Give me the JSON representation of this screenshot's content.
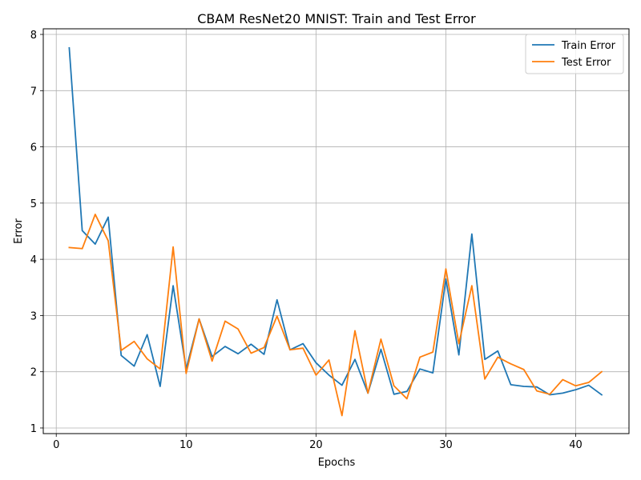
{
  "chart_data": {
    "type": "line",
    "title": "CBAM ResNet20 MNIST: Train and Test Error",
    "xlabel": "Epochs",
    "ylabel": "Error",
    "xlim": [
      -1,
      44.1
    ],
    "ylim": [
      0.9,
      8.1
    ],
    "xticks": [
      0,
      10,
      20,
      30,
      40
    ],
    "yticks": [
      1,
      2,
      3,
      4,
      5,
      6,
      7,
      8
    ],
    "grid": true,
    "legend_position": "top-right",
    "x": [
      1,
      2,
      3,
      4,
      5,
      6,
      7,
      8,
      9,
      10,
      11,
      12,
      13,
      14,
      15,
      16,
      17,
      18,
      19,
      20,
      21,
      22,
      23,
      24,
      25,
      26,
      27,
      28,
      29,
      30,
      31,
      32,
      33,
      34,
      35,
      36,
      37,
      38,
      39,
      40,
      41,
      42
    ],
    "series": [
      {
        "name": "Train Error",
        "color": "#1f77b4",
        "values": [
          7.76,
          4.51,
          4.27,
          4.75,
          2.29,
          2.1,
          2.66,
          1.74,
          3.53,
          2.05,
          2.94,
          2.27,
          2.45,
          2.32,
          2.49,
          2.31,
          3.28,
          2.39,
          2.5,
          2.16,
          1.94,
          1.76,
          2.22,
          1.62,
          2.4,
          1.6,
          1.65,
          2.05,
          1.98,
          3.65,
          2.3,
          4.45,
          2.22,
          2.37,
          1.77,
          1.74,
          1.73,
          1.59,
          1.62,
          1.68,
          1.76,
          1.59
        ]
      },
      {
        "name": "Test Error",
        "color": "#ff7f0e",
        "values": [
          4.21,
          4.19,
          4.8,
          4.33,
          2.38,
          2.54,
          2.23,
          2.05,
          4.22,
          1.97,
          2.94,
          2.19,
          2.9,
          2.76,
          2.33,
          2.43,
          2.99,
          2.39,
          2.42,
          1.94,
          2.21,
          1.22,
          2.73,
          1.62,
          2.58,
          1.75,
          1.52,
          2.26,
          2.35,
          3.83,
          2.5,
          3.53,
          1.87,
          2.26,
          2.14,
          2.04,
          1.66,
          1.6,
          1.86,
          1.75,
          1.81,
          2.0
        ]
      }
    ]
  }
}
